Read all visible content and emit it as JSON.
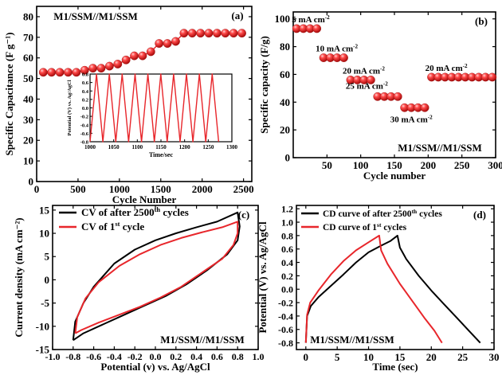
{
  "colors": {
    "axis": "#000000",
    "red": "#e8262b",
    "black": "#000000",
    "ball": "#e51d22",
    "ball_highlight": "#ffb3b3"
  },
  "chart_data": [
    {
      "id": "a",
      "type": "scatter",
      "panel_label": "(a)",
      "title": "M1/SSM//M1/SSM",
      "xlabel": "Cycle Number",
      "ylabel": "Specific Capacitance (F g⁻¹)",
      "xlim": [
        0,
        2600
      ],
      "ylim": [
        0,
        85
      ],
      "xticks": [
        0,
        500,
        1000,
        1500,
        2000,
        2500
      ],
      "yticks": [
        0,
        10,
        20,
        30,
        40,
        50,
        60,
        70,
        80
      ],
      "series": [
        {
          "color": "#e51d22",
          "marker": "sphere",
          "line": true,
          "points": [
            [
              80,
              53
            ],
            [
              180,
              53
            ],
            [
              280,
              53
            ],
            [
              380,
              53
            ],
            [
              480,
              53
            ],
            [
              580,
              54
            ],
            [
              680,
              55
            ],
            [
              780,
              55
            ],
            [
              880,
              56
            ],
            [
              980,
              57
            ],
            [
              1080,
              59
            ],
            [
              1180,
              61
            ],
            [
              1280,
              61
            ],
            [
              1380,
              63
            ],
            [
              1480,
              67
            ],
            [
              1580,
              67
            ],
            [
              1680,
              68
            ],
            [
              1780,
              72
            ],
            [
              1880,
              72
            ],
            [
              1980,
              72
            ],
            [
              2080,
              72
            ],
            [
              2180,
              72
            ],
            [
              2280,
              72
            ],
            [
              2380,
              72
            ],
            [
              2480,
              72
            ]
          ]
        }
      ],
      "inset": {
        "type": "line",
        "xlabel": "Time/sec",
        "ylabel": "Potential (V) vs. Ag/AgCl",
        "xlim": [
          1000,
          1300
        ],
        "ylim": [
          -0.8,
          0.8
        ],
        "xticks": [
          1000,
          1050,
          1100,
          1150,
          1200,
          1250,
          1300
        ],
        "yticks": [
          -0.8,
          -0.6,
          -0.4,
          -0.2,
          0.0,
          0.2,
          0.4,
          0.6,
          0.8
        ],
        "color": "#e8262b",
        "cycles_shown": 10,
        "x_start": 1000,
        "x_end": 1272
      }
    },
    {
      "id": "b",
      "type": "scatter",
      "panel_label": "(b)",
      "title": "M1/SSM//M1/SSM",
      "xlabel": "Cycle number",
      "ylabel": "Specific capacity (F/g)",
      "xlim": [
        0,
        300
      ],
      "ylim": [
        0,
        105
      ],
      "xticks": [
        50,
        100,
        150,
        200,
        250,
        300
      ],
      "yticks": [
        0,
        20,
        40,
        60,
        80,
        100
      ],
      "series": [
        {
          "color": "#e51d22",
          "marker": "sphere",
          "groups": [
            {
              "label": "5 mA cm⁻²",
              "x": [
                5,
                15,
                25,
                35
              ],
              "y": 93
            },
            {
              "label": "10 mA cm⁻²",
              "x": [
                45,
                55,
                65,
                75
              ],
              "y": 72
            },
            {
              "label": "20 mA cm⁻²",
              "x": [
                85,
                95,
                105,
                115
              ],
              "y": 56
            },
            {
              "label": "25 mA cm⁻²",
              "x": [
                125,
                135,
                145,
                155
              ],
              "y": 44
            },
            {
              "label": "30 mA cm⁻²",
              "x": [
                165,
                175,
                185,
                195
              ],
              "y": 36
            },
            {
              "label": "20 mA cm⁻²",
              "x": [
                205,
                215,
                225,
                235,
                245,
                255,
                265,
                275,
                285,
                295
              ],
              "y": 58
            }
          ]
        }
      ]
    },
    {
      "id": "c",
      "type": "line",
      "panel_label": "(c)",
      "title": "M1/SSM//M1/SSM",
      "xlabel": "Potential (v) vs. Ag/AgCl",
      "ylabel": "Current density (mA cm⁻²)",
      "xlim": [
        -1.0,
        1.0
      ],
      "ylim": [
        -15,
        16
      ],
      "xticks": [
        -1.0,
        -0.8,
        -0.6,
        -0.4,
        -0.2,
        0.0,
        0.2,
        0.4,
        0.6,
        0.8,
        1.0
      ],
      "yticks": [
        -15,
        -10,
        -5,
        0,
        5,
        10,
        15
      ],
      "series": [
        {
          "name": "CV of after 2500th cycles",
          "color": "#000000",
          "points": [
            [
              -0.8,
              -13
            ],
            [
              -0.78,
              -9
            ],
            [
              -0.7,
              -5
            ],
            [
              -0.6,
              -1.5
            ],
            [
              -0.4,
              3.5
            ],
            [
              -0.2,
              6.5
            ],
            [
              0.0,
              8.5
            ],
            [
              0.2,
              10
            ],
            [
              0.4,
              11.3
            ],
            [
              0.6,
              12.5
            ],
            [
              0.8,
              14.5
            ],
            [
              0.82,
              11.5
            ],
            [
              0.8,
              8.5
            ],
            [
              0.7,
              5.5
            ],
            [
              0.5,
              2
            ],
            [
              0.3,
              -1
            ],
            [
              0.1,
              -3.5
            ],
            [
              -0.1,
              -5.5
            ],
            [
              -0.3,
              -7.5
            ],
            [
              -0.5,
              -9.5
            ],
            [
              -0.7,
              -11.5
            ],
            [
              -0.8,
              -13
            ]
          ]
        },
        {
          "name": "CV of 1st cycle",
          "color": "#e8262b",
          "points": [
            [
              -0.78,
              -11.5
            ],
            [
              -0.76,
              -8
            ],
            [
              -0.68,
              -4
            ],
            [
              -0.55,
              -0.5
            ],
            [
              -0.35,
              3
            ],
            [
              -0.15,
              5.5
            ],
            [
              0.05,
              7.5
            ],
            [
              0.25,
              9
            ],
            [
              0.45,
              10.2
            ],
            [
              0.65,
              11.3
            ],
            [
              0.8,
              12.5
            ],
            [
              0.8,
              10
            ],
            [
              0.76,
              7.5
            ],
            [
              0.65,
              4.5
            ],
            [
              0.45,
              1.5
            ],
            [
              0.25,
              -1.5
            ],
            [
              0.05,
              -3.8
            ],
            [
              -0.15,
              -5.8
            ],
            [
              -0.35,
              -7.5
            ],
            [
              -0.55,
              -9.2
            ],
            [
              -0.72,
              -10.8
            ],
            [
              -0.78,
              -11.5
            ]
          ]
        }
      ]
    },
    {
      "id": "d",
      "type": "line",
      "panel_label": "(d)",
      "title": "M1/SSM//M1/SSM",
      "xlabel": "Time (sec)",
      "ylabel": "Potential (V) vs. Ag/AgCl",
      "xlim": [
        -1.5,
        30
      ],
      "ylim": [
        -0.9,
        1.25
      ],
      "xticks": [
        0,
        5,
        10,
        15,
        20,
        25,
        30
      ],
      "yticks": [
        -0.8,
        -0.6,
        -0.4,
        -0.2,
        0.0,
        0.2,
        0.4,
        0.6,
        0.8,
        1.0,
        1.2
      ],
      "series": [
        {
          "name": "CD curve of after 2500th cycles",
          "color": "#000000",
          "points": [
            [
              0,
              -0.8
            ],
            [
              0.2,
              -0.4
            ],
            [
              0.8,
              -0.25
            ],
            [
              2,
              -0.12
            ],
            [
              4,
              0.05
            ],
            [
              6,
              0.22
            ],
            [
              8,
              0.4
            ],
            [
              10,
              0.55
            ],
            [
              12,
              0.65
            ],
            [
              13.5,
              0.72
            ],
            [
              14.6,
              0.8
            ],
            [
              15,
              0.62
            ],
            [
              16,
              0.45
            ],
            [
              18,
              0.2
            ],
            [
              20,
              -0.02
            ],
            [
              22,
              -0.22
            ],
            [
              24,
              -0.42
            ],
            [
              26,
              -0.62
            ],
            [
              27.8,
              -0.8
            ]
          ]
        },
        {
          "name": "CD curve of 1st cycles",
          "color": "#e8262b",
          "points": [
            [
              0,
              -0.8
            ],
            [
              0.2,
              -0.38
            ],
            [
              0.7,
              -0.2
            ],
            [
              2,
              -0.02
            ],
            [
              4,
              0.22
            ],
            [
              6,
              0.42
            ],
            [
              8,
              0.58
            ],
            [
              10,
              0.7
            ],
            [
              11.7,
              0.8
            ],
            [
              12,
              0.58
            ],
            [
              13,
              0.38
            ],
            [
              15,
              0.08
            ],
            [
              17,
              -0.18
            ],
            [
              19,
              -0.44
            ],
            [
              20.5,
              -0.62
            ],
            [
              21.7,
              -0.8
            ]
          ]
        }
      ]
    }
  ]
}
